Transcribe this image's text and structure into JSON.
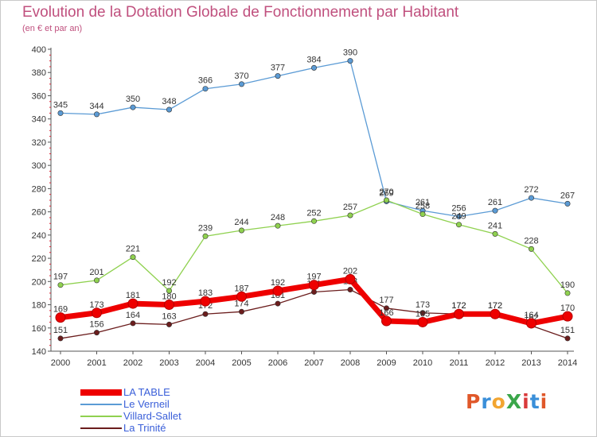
{
  "title": "Evolution de la Dotation Globale de Fonctionnement par Habitant",
  "subtitle": "(en € et par an)",
  "logo": {
    "text": "ProXiti",
    "colors": [
      "#e0582a",
      "#3a8fd9",
      "#f2a531",
      "#3aa64a",
      "#d93a3a",
      "#3a8fd9",
      "#e0582a"
    ]
  },
  "chart_data": {
    "type": "line",
    "title": "Evolution de la Dotation Globale de Fonctionnement par Habitant",
    "ylabel": "(en € et par an)",
    "xlabel": "",
    "ylim": [
      140,
      400
    ],
    "y_ticks": [
      140,
      160,
      180,
      200,
      220,
      240,
      260,
      280,
      300,
      320,
      340,
      360,
      380,
      400
    ],
    "grid": false,
    "legend_position": "bottom-left",
    "categories": [
      "2000",
      "2001",
      "2002",
      "2003",
      "2004",
      "2005",
      "2006",
      "2007",
      "2008",
      "2009",
      "2010",
      "2011",
      "2012",
      "2013",
      "2014"
    ],
    "series": [
      {
        "name": "Le Verneil",
        "color": "#5b9bd5",
        "emphasis": false,
        "values": [
          345,
          344,
          350,
          348,
          366,
          370,
          377,
          384,
          390,
          269,
          261,
          256,
          261,
          272,
          267
        ]
      },
      {
        "name": "Villard-Sallet",
        "color": "#8fd14f",
        "emphasis": false,
        "values": [
          197,
          201,
          221,
          192,
          239,
          244,
          248,
          252,
          257,
          270,
          258,
          249,
          241,
          228,
          190
        ]
      },
      {
        "name": "La Trinité",
        "color": "#6b1d1d",
        "emphasis": false,
        "values": [
          151,
          156,
          164,
          163,
          172,
          174,
          181,
          191,
          193,
          177,
          173,
          172,
          172,
          162,
          151
        ]
      },
      {
        "name": "LA TABLE",
        "color": "#ee0000",
        "emphasis": true,
        "values": [
          169,
          173,
          181,
          180,
          183,
          187,
          192,
          197,
          202,
          166,
          165,
          172,
          172,
          164,
          170
        ]
      }
    ],
    "legend_order": [
      "LA TABLE",
      "Le Verneil",
      "Villard-Sallet",
      "La Trinité"
    ]
  }
}
